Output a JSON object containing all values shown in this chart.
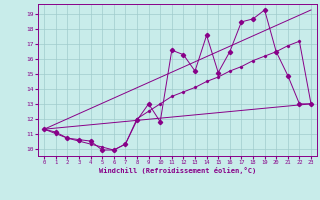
{
  "xlabel": "Windchill (Refroidissement éolien,°C)",
  "xlim": [
    -0.5,
    23.5
  ],
  "ylim": [
    9.5,
    19.7
  ],
  "xticks": [
    0,
    1,
    2,
    3,
    4,
    5,
    6,
    7,
    8,
    9,
    10,
    11,
    12,
    13,
    14,
    15,
    16,
    17,
    18,
    19,
    20,
    21,
    22,
    23
  ],
  "yticks": [
    10,
    11,
    12,
    13,
    14,
    15,
    16,
    17,
    18,
    19
  ],
  "bg_color": "#c8ecea",
  "grid_color": "#a0cccc",
  "line_color": "#880088",
  "line1_x": [
    0,
    1,
    2,
    3,
    4,
    5,
    6,
    7,
    8,
    9,
    10,
    11,
    12,
    13,
    14,
    15,
    16,
    17,
    18,
    19,
    20,
    21,
    22,
    23
  ],
  "line1_y": [
    11.3,
    11.1,
    10.7,
    10.6,
    10.5,
    9.9,
    9.9,
    10.3,
    11.9,
    13.0,
    11.8,
    16.6,
    16.3,
    15.2,
    17.6,
    15.1,
    16.5,
    18.5,
    18.7,
    19.3,
    16.5,
    14.9,
    13.0,
    13.0
  ],
  "line2_x": [
    0,
    1,
    2,
    3,
    4,
    5,
    6,
    7,
    8,
    9,
    10,
    11,
    12,
    13,
    14,
    15,
    16,
    17,
    18,
    19,
    20,
    21,
    22,
    23
  ],
  "line2_y": [
    11.3,
    11.0,
    10.7,
    10.5,
    10.3,
    10.1,
    9.9,
    10.3,
    12.0,
    12.5,
    13.0,
    13.5,
    13.8,
    14.1,
    14.5,
    14.8,
    15.2,
    15.5,
    15.9,
    16.2,
    16.5,
    16.9,
    17.2,
    13.0
  ],
  "line3_x": [
    0,
    23
  ],
  "line3_y": [
    11.3,
    13.0
  ],
  "line4_x": [
    0,
    23
  ],
  "line4_y": [
    11.3,
    19.3
  ]
}
